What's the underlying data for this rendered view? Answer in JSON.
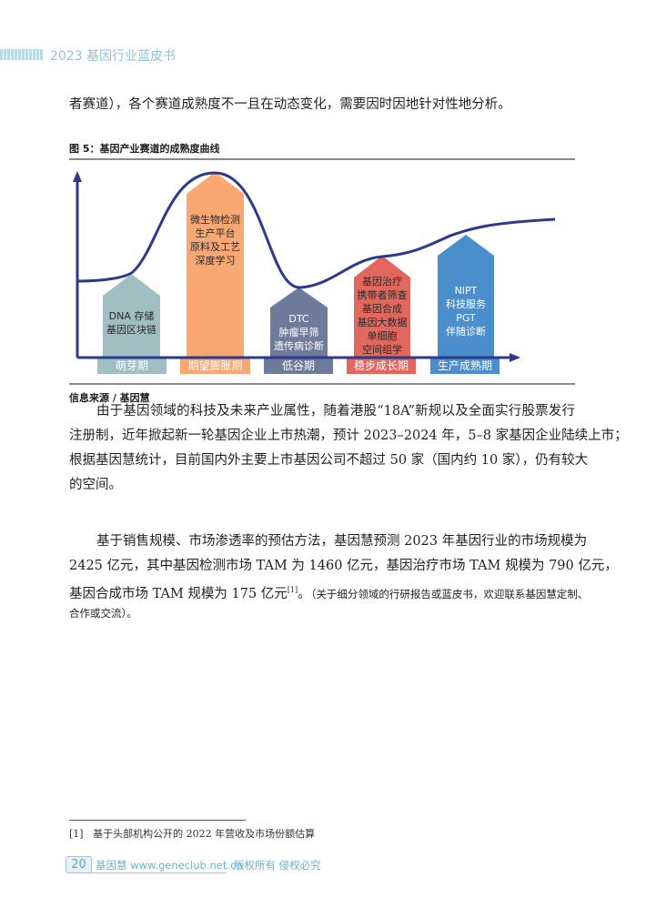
{
  "header": {
    "title": "2023 基因行业蓝皮书"
  },
  "intro_line": "者赛道），各个赛道成熟度不一且在动态变化，需要因时因地针对性地分析。",
  "figure": {
    "title": "图 5：基因产业赛道的成熟度曲线",
    "source": "信息来源 / 基因慧",
    "stages": [
      {
        "label": "萌芽期",
        "color": "#9fbfc3",
        "items": [
          "DNA 存储",
          "基因区块链"
        ]
      },
      {
        "label": "期望膨胀期",
        "color": "#f9a874",
        "items": [
          "微生物检测",
          "生产平台",
          "原料及工艺",
          "深度学习"
        ]
      },
      {
        "label": "低谷期",
        "color": "#6e7b9b",
        "items": [
          "DTC",
          "肿瘤早筛",
          "遗传病诊断"
        ]
      },
      {
        "label": "稳步成长期",
        "color": "#e2685e",
        "items": [
          "基因治疗",
          "携带者筛查",
          "基因合成",
          "基因大数据",
          "单细胞",
          "空间组学"
        ]
      },
      {
        "label": "生产成熟期",
        "color": "#4a8fcc",
        "items": [
          "NIPT",
          "科技服务",
          "PGT",
          "伴随诊断"
        ]
      }
    ],
    "curve_color": "#2b3a8c"
  },
  "paragraph1": [
    "由于基因领域的科技及未来产业属性，随着港股“18A”新规以及全面实行股票发行",
    "注册制，近年掀起新一轮基因企业上市热潮，预计 2023–2024 年，5–8 家基因企业陆续上市；",
    "根据基因慧统计，目前国内外主要上市基因公司不超过 50 家（国内约 10 家），仍有较大",
    "的空间。"
  ],
  "paragraph2": [
    "基于销售规模、市场渗透率的预估方法，基因慧预测 2023 年基因行业的市场规模为",
    "2425 亿元，其中基因检测市场 TAM 为 1460 亿元，基因治疗市场 TAM 规模为 790 亿元，"
  ],
  "paragraph2_line3": {
    "main": "基因合成市场 TAM 规模为 175 亿元",
    "ref": "[1]",
    "end": "。",
    "note": "（关于细分领域的行研报告或蓝皮书，欢迎联系基因慧定制、"
  },
  "paragraph2_line4": "合作或交流）。",
  "footnote": {
    "marker": "[1]",
    "text": "基于头部机构公开的 2022 年营收及市场份额估算"
  },
  "footer": {
    "page": "20",
    "brand": "基因慧 www.geneclub.net.cn",
    "rights": "版权所有  侵权必究"
  }
}
